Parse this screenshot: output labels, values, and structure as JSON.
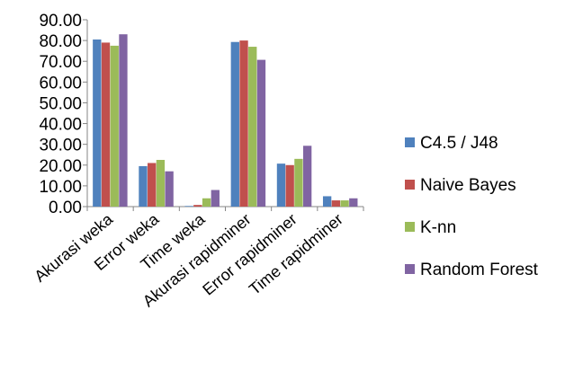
{
  "chart_data": {
    "type": "bar",
    "categories": [
      "Akurasi weka",
      "Error weka",
      "Time weka",
      "Akurasi rapidminer",
      "Error rapidminer",
      "Time rapidminer"
    ],
    "series": [
      {
        "name": "C4.5 / J48",
        "color": "#4F81BD",
        "values": [
          80.5,
          19.5,
          0.3,
          79.3,
          20.7,
          5.0
        ]
      },
      {
        "name": "Naive Bayes",
        "color": "#C0504D",
        "values": [
          79.0,
          21.0,
          0.8,
          80.0,
          20.0,
          3.0
        ]
      },
      {
        "name": "K-nn",
        "color": "#9BBB59",
        "values": [
          77.5,
          22.5,
          4.0,
          77.0,
          23.0,
          3.0
        ]
      },
      {
        "name": "Random Forest",
        "color": "#8064A2",
        "values": [
          83.0,
          17.0,
          8.0,
          70.7,
          29.3,
          4.0
        ]
      }
    ],
    "yticks": [
      "0.00",
      "10.00",
      "20.00",
      "30.00",
      "40.00",
      "50.00",
      "60.00",
      "70.00",
      "80.00",
      "90.00"
    ],
    "ylim": [
      0,
      90
    ],
    "title": "",
    "xlabel": "",
    "ylabel": "",
    "legend_position": "right",
    "grid": false
  }
}
